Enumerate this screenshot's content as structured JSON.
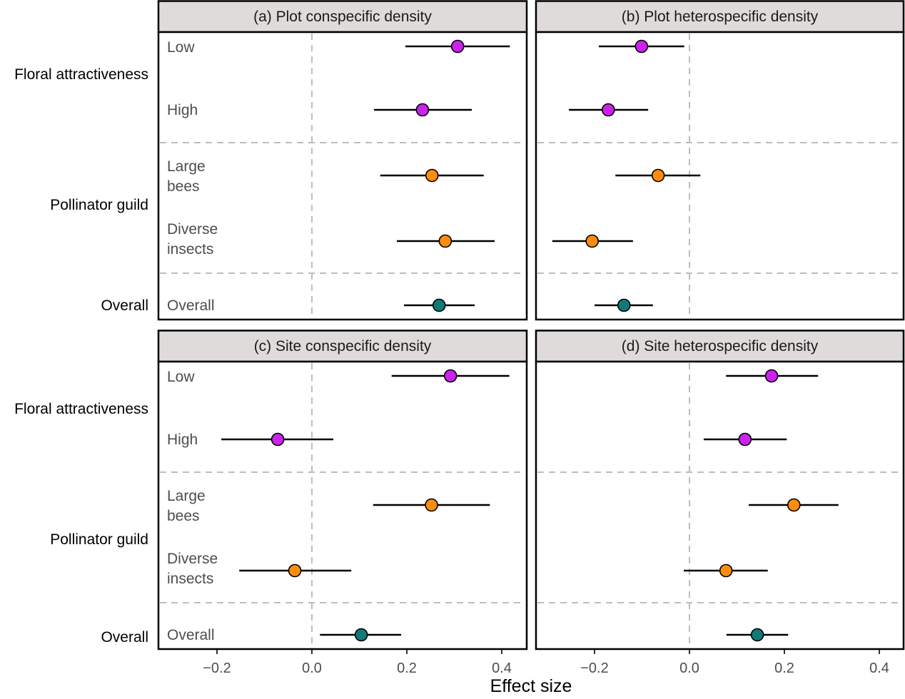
{
  "chart_data": {
    "type": "scatter",
    "subtype": "forest-plot",
    "xlabel": "Effect size",
    "ylabel": "",
    "xlim": [
      -0.32,
      0.45
    ],
    "xticks": [
      -0.2,
      0.0,
      0.2,
      0.4
    ],
    "xtick_labels": [
      "−0.2",
      "0.0",
      "0.2",
      "0.4"
    ],
    "reference_line": 0,
    "grid": false,
    "legend": "none",
    "row_groups": [
      {
        "label": "Floral attractiveness",
        "rows": [
          "Low",
          "High"
        ]
      },
      {
        "label": "Pollinator guild",
        "rows": [
          "Large\nbees",
          "Diverse\ninsects"
        ]
      },
      {
        "label": "Overall",
        "rows": [
          "Overall"
        ]
      }
    ],
    "row_labels": [
      {
        "line1": "Low",
        "line2": ""
      },
      {
        "line1": "High",
        "line2": ""
      },
      {
        "line1": "Large",
        "line2": "bees"
      },
      {
        "line1": "Diverse",
        "line2": "insects"
      },
      {
        "line1": "Overall",
        "line2": ""
      }
    ],
    "colors": {
      "Floral attractiveness": "#cc22ee",
      "Pollinator guild": "#ff8c0a",
      "Overall": "#0f7b78"
    },
    "panels": [
      {
        "title": "(a) Plot conspecific density",
        "show_row_labels": true,
        "series": [
          {
            "row": "Low",
            "group": "Floral attractiveness",
            "estimate": 0.307,
            "lower": 0.197,
            "upper": 0.417
          },
          {
            "row": "High",
            "group": "Floral attractiveness",
            "estimate": 0.233,
            "lower": 0.131,
            "upper": 0.337
          },
          {
            "row": "Large bees",
            "group": "Pollinator guild",
            "estimate": 0.253,
            "lower": 0.144,
            "upper": 0.362
          },
          {
            "row": "Diverse insects",
            "group": "Pollinator guild",
            "estimate": 0.281,
            "lower": 0.179,
            "upper": 0.385
          },
          {
            "row": "Overall",
            "group": "Overall",
            "estimate": 0.268,
            "lower": 0.194,
            "upper": 0.343
          }
        ]
      },
      {
        "title": "(b) Plot heterospecific density",
        "show_row_labels": false,
        "series": [
          {
            "row": "Low",
            "group": "Floral attractiveness",
            "estimate": -0.101,
            "lower": -0.191,
            "upper": -0.011
          },
          {
            "row": "High",
            "group": "Floral attractiveness",
            "estimate": -0.171,
            "lower": -0.254,
            "upper": -0.087
          },
          {
            "row": "Large bees",
            "group": "Pollinator guild",
            "estimate": -0.066,
            "lower": -0.156,
            "upper": 0.023
          },
          {
            "row": "Diverse insects",
            "group": "Pollinator guild",
            "estimate": -0.205,
            "lower": -0.289,
            "upper": -0.119
          },
          {
            "row": "Overall",
            "group": "Overall",
            "estimate": -0.138,
            "lower": -0.2,
            "upper": -0.077
          }
        ]
      },
      {
        "title": "(c) Site conspecific density",
        "show_row_labels": true,
        "series": [
          {
            "row": "Low",
            "group": "Floral attractiveness",
            "estimate": 0.292,
            "lower": 0.168,
            "upper": 0.416
          },
          {
            "row": "High",
            "group": "Floral attractiveness",
            "estimate": -0.072,
            "lower": -0.191,
            "upper": 0.045
          },
          {
            "row": "Large bees",
            "group": "Pollinator guild",
            "estimate": 0.252,
            "lower": 0.129,
            "upper": 0.375
          },
          {
            "row": "Diverse insects",
            "group": "Pollinator guild",
            "estimate": -0.036,
            "lower": -0.153,
            "upper": 0.083
          },
          {
            "row": "Overall",
            "group": "Overall",
            "estimate": 0.104,
            "lower": 0.017,
            "upper": 0.188
          }
        ]
      },
      {
        "title": "(d) Site heterospecific density",
        "show_row_labels": false,
        "series": [
          {
            "row": "Low",
            "group": "Floral attractiveness",
            "estimate": 0.173,
            "lower": 0.077,
            "upper": 0.271
          },
          {
            "row": "High",
            "group": "Floral attractiveness",
            "estimate": 0.117,
            "lower": 0.03,
            "upper": 0.205
          },
          {
            "row": "Large bees",
            "group": "Pollinator guild",
            "estimate": 0.22,
            "lower": 0.125,
            "upper": 0.314
          },
          {
            "row": "Diverse insects",
            "group": "Pollinator guild",
            "estimate": 0.077,
            "lower": -0.012,
            "upper": 0.165
          },
          {
            "row": "Overall",
            "group": "Overall",
            "estimate": 0.143,
            "lower": 0.078,
            "upper": 0.208
          }
        ]
      }
    ]
  }
}
